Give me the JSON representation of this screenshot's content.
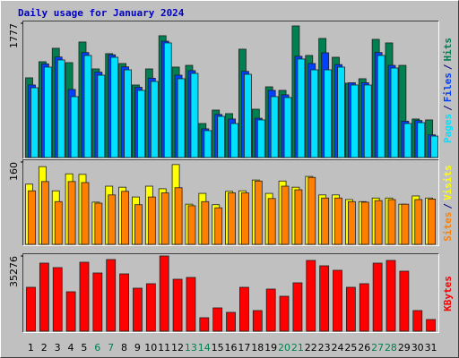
{
  "chart_data": [
    {
      "type": "bar",
      "title": "Daily usage for January 2024",
      "title_color": "#0000c0",
      "legend_separator": "/",
      "series": [
        {
          "name": "Pages",
          "color": "#00e0ff",
          "values": [
            924,
            1197,
            1292,
            806,
            1351,
            1090,
            1327,
            1161,
            889,
            1007,
            1517,
            1043,
            1114,
            356,
            545,
            450,
            1102,
            498,
            806,
            794,
            1304,
            1161,
            1161,
            1197,
            960,
            960,
            1351,
            1185,
            450,
            462,
            284
          ]
        },
        {
          "name": "Files",
          "color": "#0040ff",
          "values": [
            960,
            1240,
            1330,
            901,
            1390,
            1130,
            1360,
            1200,
            930,
            1050,
            1540,
            1090,
            1150,
            380,
            570,
            510,
            1140,
            520,
            889,
            830,
            1340,
            1244,
            1386,
            1230,
            990,
            990,
            1390,
            1220,
            480,
            490,
            300
          ]
        },
        {
          "name": "Hits",
          "color": "#008050",
          "values": [
            1055,
            1268,
            1446,
            1256,
            1529,
            1173,
            1375,
            1244,
            960,
            1173,
            1612,
            1197,
            1220,
            450,
            628,
            581,
            1434,
            640,
            936,
            889,
            1742,
            1351,
            1576,
            1327,
            984,
            1043,
            1564,
            1517,
            1220,
            510,
            498
          ]
        }
      ],
      "ylim": [
        0,
        1777
      ],
      "yticks": [
        1777
      ]
    },
    {
      "type": "bar",
      "series": [
        {
          "name": "Sites",
          "color": "#ff8000",
          "values": [
            104,
            122,
            83,
            122,
            120,
            80,
            96,
            103,
            77,
            92,
            100,
            110,
            75,
            83,
            71,
            100,
            100,
            123,
            89,
            113,
            106,
            130,
            90,
            90,
            83,
            82,
            85,
            87,
            78,
            87,
            88
          ]
        },
        {
          "name": "Visits",
          "color": "#ffff00",
          "values": [
            117,
            151,
            104,
            137,
            136,
            82,
            113,
            111,
            92,
            113,
            108,
            155,
            78,
            99,
            77,
            103,
            104,
            125,
            99,
            123,
            111,
            132,
            96,
            96,
            87,
            83,
            90,
            90,
            78,
            94,
            90
          ]
        }
      ],
      "ylim": [
        0,
        160
      ],
      "yticks": [
        160
      ]
    },
    {
      "type": "bar",
      "series": [
        {
          "name": "KBytes",
          "color": "#ff0000",
          "values": [
            20580,
            31920,
            29820,
            18480,
            32340,
            27300,
            33600,
            26880,
            20160,
            22260,
            35276,
            24360,
            25200,
            6300,
            10920,
            8820,
            20580,
            9660,
            19740,
            16380,
            22680,
            33180,
            30660,
            28560,
            20580,
            22260,
            31920,
            33180,
            28140,
            9660,
            5460
          ]
        }
      ],
      "ylim": [
        0,
        35276
      ],
      "yticks": [
        35276
      ],
      "categories": [
        "1",
        "2",
        "3",
        "4",
        "5",
        "6",
        "7",
        "8",
        "9",
        "10",
        "11",
        "12",
        "13",
        "14",
        "15",
        "16",
        "17",
        "18",
        "19",
        "20",
        "21",
        "22",
        "23",
        "24",
        "25",
        "26",
        "27",
        "28",
        "29",
        "30",
        "31"
      ],
      "category_colors": [
        "#000000",
        "#000000",
        "#000000",
        "#000000",
        "#000000",
        "#008050",
        "#008050",
        "#000000",
        "#000000",
        "#000000",
        "#000000",
        "#000000",
        "#008050",
        "#008050",
        "#000000",
        "#000000",
        "#000000",
        "#000000",
        "#000000",
        "#008050",
        "#008050",
        "#000000",
        "#000000",
        "#000000",
        "#000000",
        "#000000",
        "#008050",
        "#008050",
        "#000000",
        "#000000",
        "#000000"
      ]
    }
  ]
}
